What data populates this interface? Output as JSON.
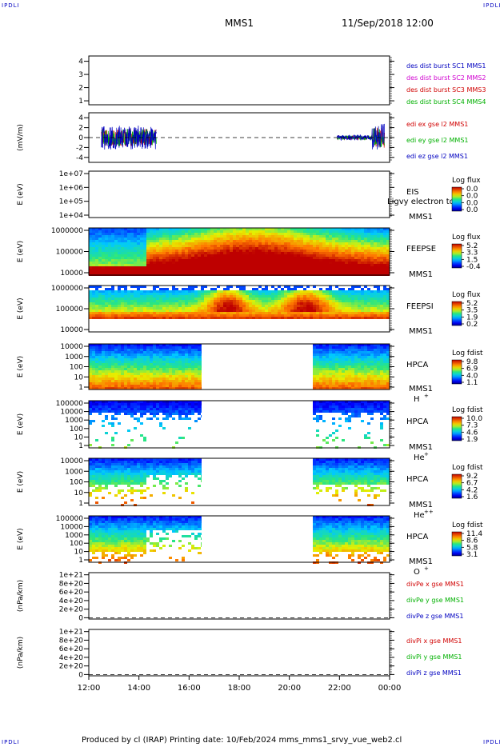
{
  "header": {
    "corner_mark": "IPDLI",
    "spacecraft": "MMS1",
    "datetime": "11/Sep/2018 12:00"
  },
  "footer": {
    "text": "Produced by cl (IRAP)    Printing date: 10/Feb/2024    mms_mms1_srvy_vue_web2.cl"
  },
  "chart_data": {
    "type": "multi-panel",
    "x": {
      "ticks": [
        "12:00",
        "14:00",
        "16:00",
        "18:00",
        "20:00",
        "22:00",
        "00:00"
      ],
      "range_hours": [
        12,
        24
      ]
    },
    "panels": [
      {
        "id": "p1",
        "ylabel": "",
        "ticks": [
          "4",
          "3",
          "2",
          "1"
        ],
        "ylim": [
          0.7,
          4.4
        ],
        "legend": [
          {
            "text": "des dist burst SC1 MMS1",
            "color": "#0000c0"
          },
          {
            "text": "des dist burst SC2 MMS2",
            "color": "#d000d0"
          },
          {
            "text": "des dist burst SC3 MMS3",
            "color": "#d00000"
          },
          {
            "text": "des dist burst SC4 MMS4",
            "color": "#00b000"
          }
        ]
      },
      {
        "id": "p2",
        "ylabel": "(mV/m)",
        "ticks": [
          "4",
          "2",
          "0",
          "-2",
          "-4"
        ],
        "ylim": [
          -5,
          5
        ],
        "legend": [
          {
            "text": "edi ex gse l2 MMS1",
            "color": "#d00000"
          },
          {
            "text": "edi ey gse l2 MMS1",
            "color": "#00b000"
          },
          {
            "text": "edi ez gse l2 MMS1",
            "color": "#0000c0"
          }
        ]
      },
      {
        "id": "p3",
        "ylabel": "E (eV)",
        "ticks": [
          "1e+07",
          "1e+06",
          "1e+05",
          "1e+04"
        ],
        "instrument": [
          "EIS",
          "MMS1"
        ],
        "overlay_text": "Ligvy electron to",
        "colorbar": {
          "title": "Log flux",
          "ticks": [
            "0.0",
            "0.0",
            "0.0",
            "0.0"
          ]
        }
      },
      {
        "id": "p4",
        "ylabel": "E (eV)",
        "ticks": [
          "1000000",
          "100000",
          "10000"
        ],
        "instrument": [
          "FEEPSE",
          "MMS1"
        ],
        "colorbar": {
          "title": "Log flux",
          "ticks": [
            "5.2",
            "3.3",
            "1.5",
            "-0.4"
          ]
        }
      },
      {
        "id": "p5",
        "ylabel": "E (eV)",
        "ticks": [
          "1000000",
          "100000",
          "10000"
        ],
        "instrument": [
          "FEEPSI",
          "MMS1"
        ],
        "colorbar": {
          "title": "Log flux",
          "ticks": [
            "5.2",
            "3.5",
            "1.9",
            "0.2"
          ]
        }
      },
      {
        "id": "p6",
        "ylabel": "E (eV)",
        "ticks": [
          "10000",
          "1000",
          "100",
          "10",
          "1"
        ],
        "instrument": [
          "HPCA",
          "MMS1",
          "H",
          "+"
        ],
        "colorbar": {
          "title": "Log fdist",
          "ticks": [
            "9.8",
            "6.9",
            "4.0",
            "1.1"
          ]
        }
      },
      {
        "id": "p7",
        "ylabel": "E (eV)",
        "ticks": [
          "100000",
          "10000",
          "1000",
          "100",
          "10",
          "1"
        ],
        "instrument": [
          "HPCA",
          "MMS1",
          "He",
          "+"
        ],
        "colorbar": {
          "title": "Log fdist",
          "ticks": [
            "10.0",
            "7.3",
            "4.6",
            "1.9"
          ]
        }
      },
      {
        "id": "p8",
        "ylabel": "E (eV)",
        "ticks": [
          "10000",
          "1000",
          "100",
          "10",
          "1"
        ],
        "instrument": [
          "HPCA",
          "MMS1",
          "He",
          "++"
        ],
        "colorbar": {
          "title": "Log fdist",
          "ticks": [
            "9.2",
            "6.7",
            "4.2",
            "1.6"
          ]
        }
      },
      {
        "id": "p9",
        "ylabel": "E (eV)",
        "ticks": [
          "100000",
          "10000",
          "1000",
          "100",
          "10",
          "1"
        ],
        "instrument": [
          "HPCA",
          "MMS1",
          "O",
          "+"
        ],
        "colorbar": {
          "title": "Log fdist",
          "ticks": [
            "11.4",
            "8.6",
            "5.8",
            "3.1"
          ]
        }
      },
      {
        "id": "p10",
        "ylabel": "(nPa/km)",
        "ticks": [
          "1e+21",
          "8e+20",
          "6e+20",
          "4e+20",
          "2e+20",
          "0"
        ],
        "ylim": [
          -0.3,
          10.5
        ],
        "legend": [
          {
            "text": "divPe x gse MMS1",
            "color": "#d00000"
          },
          {
            "text": "divPe y gse MMS1",
            "color": "#00b000"
          },
          {
            "text": "divPe z gse MMS1",
            "color": "#0000c0"
          }
        ]
      },
      {
        "id": "p11",
        "ylabel": "(nPa/km)",
        "ticks": [
          "1e+21",
          "8e+20",
          "6e+20",
          "4e+20",
          "2e+20",
          "0"
        ],
        "ylim": [
          -0.3,
          10.5
        ],
        "legend": [
          {
            "text": "divPi x gse MMS1",
            "color": "#d00000"
          },
          {
            "text": "divPi y gse MMS1",
            "color": "#00b000"
          },
          {
            "text": "divPi z gse MMS1",
            "color": "#0000c0"
          }
        ]
      }
    ],
    "data_coverage": {
      "edi_field_hours": [
        [
          12.5,
          14.7
        ],
        [
          21.9,
          23.8
        ]
      ],
      "hpca_hours": [
        [
          12.0,
          16.5
        ],
        [
          20.9,
          24.0
        ]
      ]
    }
  }
}
